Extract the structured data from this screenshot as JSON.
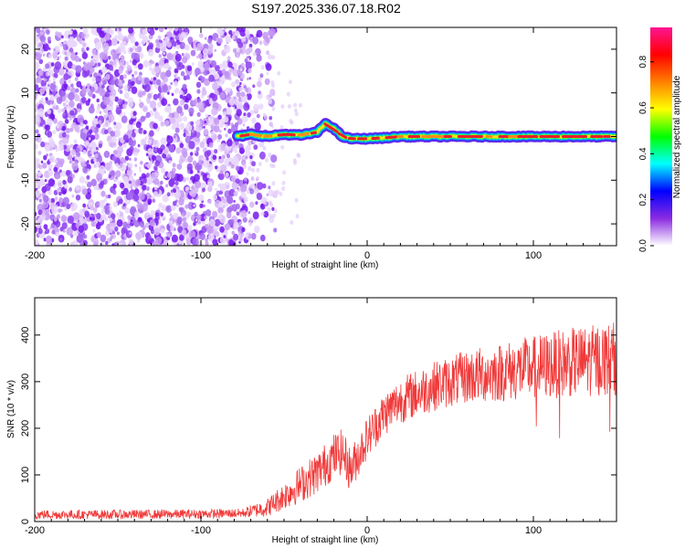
{
  "title": "S197.2025.336.07.18.R02",
  "colors": {
    "snr_line": "#f03a3a",
    "noise_purple": "#7a1cf0",
    "axis": "#000000",
    "background": "#ffffff"
  },
  "chart_data": [
    {
      "type": "heatmap",
      "name": "spectrogram",
      "xlabel": "Height of straight line (km)",
      "ylabel": "Frequency (Hz)",
      "xlim": [
        -200,
        150
      ],
      "ylim": [
        -25,
        25
      ],
      "x_ticks": [
        -200,
        -100,
        0,
        100
      ],
      "x_tick_labels": [
        "-200",
        "-100",
        "0",
        "100"
      ],
      "y_ticks": [
        20,
        10,
        0,
        -10,
        -20
      ],
      "y_tick_labels": [
        "20",
        "10",
        "0",
        "-10",
        "-20"
      ],
      "noise_region_km": [
        -200,
        -70
      ],
      "signal_start_km": -78,
      "frequency_trace": {
        "x": [
          -78,
          -70,
          -60,
          -50,
          -40,
          -30,
          -25,
          -20,
          -15,
          -10,
          0,
          10,
          20,
          50,
          100,
          150
        ],
        "y": [
          0,
          0.5,
          0,
          0.5,
          0.3,
          1.0,
          3.0,
          1.8,
          0.0,
          -0.5,
          -0.5,
          -0.3,
          0,
          0,
          0,
          0
        ]
      },
      "colorbar": {
        "label": "Normalized spectral amplitude",
        "range": [
          0,
          0.95
        ],
        "ticks": [
          0.0,
          0.2,
          0.4,
          0.6,
          0.8
        ],
        "tick_labels": [
          "0.0",
          "0.2",
          "0.4",
          "0.6",
          "0.8"
        ],
        "stops": [
          "#ffffff",
          "#8a2be2",
          "#0000ff",
          "#00ffff",
          "#00ff00",
          "#ffff00",
          "#ff8000",
          "#ff0000",
          "#ff1493"
        ]
      }
    },
    {
      "type": "line",
      "name": "snr",
      "xlabel": "Height of straight line (km)",
      "ylabel": "SNR (10 * v/v)",
      "xlim": [
        -200,
        150
      ],
      "ylim": [
        0,
        480
      ],
      "x_ticks": [
        -200,
        -100,
        0,
        100
      ],
      "x_tick_labels": [
        "-200",
        "-100",
        "0",
        "100"
      ],
      "y_ticks": [
        0,
        100,
        200,
        300,
        400
      ],
      "y_tick_labels": [
        "0",
        "100",
        "200",
        "300",
        "400"
      ],
      "trend": {
        "x": [
          -200,
          -150,
          -100,
          -75,
          -60,
          -50,
          -40,
          -30,
          -20,
          -15,
          -10,
          0,
          10,
          20,
          30,
          40,
          50,
          60,
          80,
          100,
          120,
          150
        ],
        "y": [
          15,
          15,
          16,
          18,
          30,
          55,
          80,
          105,
          140,
          150,
          110,
          180,
          230,
          260,
          275,
          290,
          300,
          310,
          320,
          330,
          340,
          350
        ]
      },
      "noise_amplitude": {
        "x": [
          -200,
          -75,
          -60,
          -40,
          -20,
          0,
          20,
          50,
          100,
          150
        ],
        "y": [
          10,
          10,
          20,
          40,
          50,
          45,
          50,
          55,
          70,
          80
        ]
      }
    }
  ]
}
